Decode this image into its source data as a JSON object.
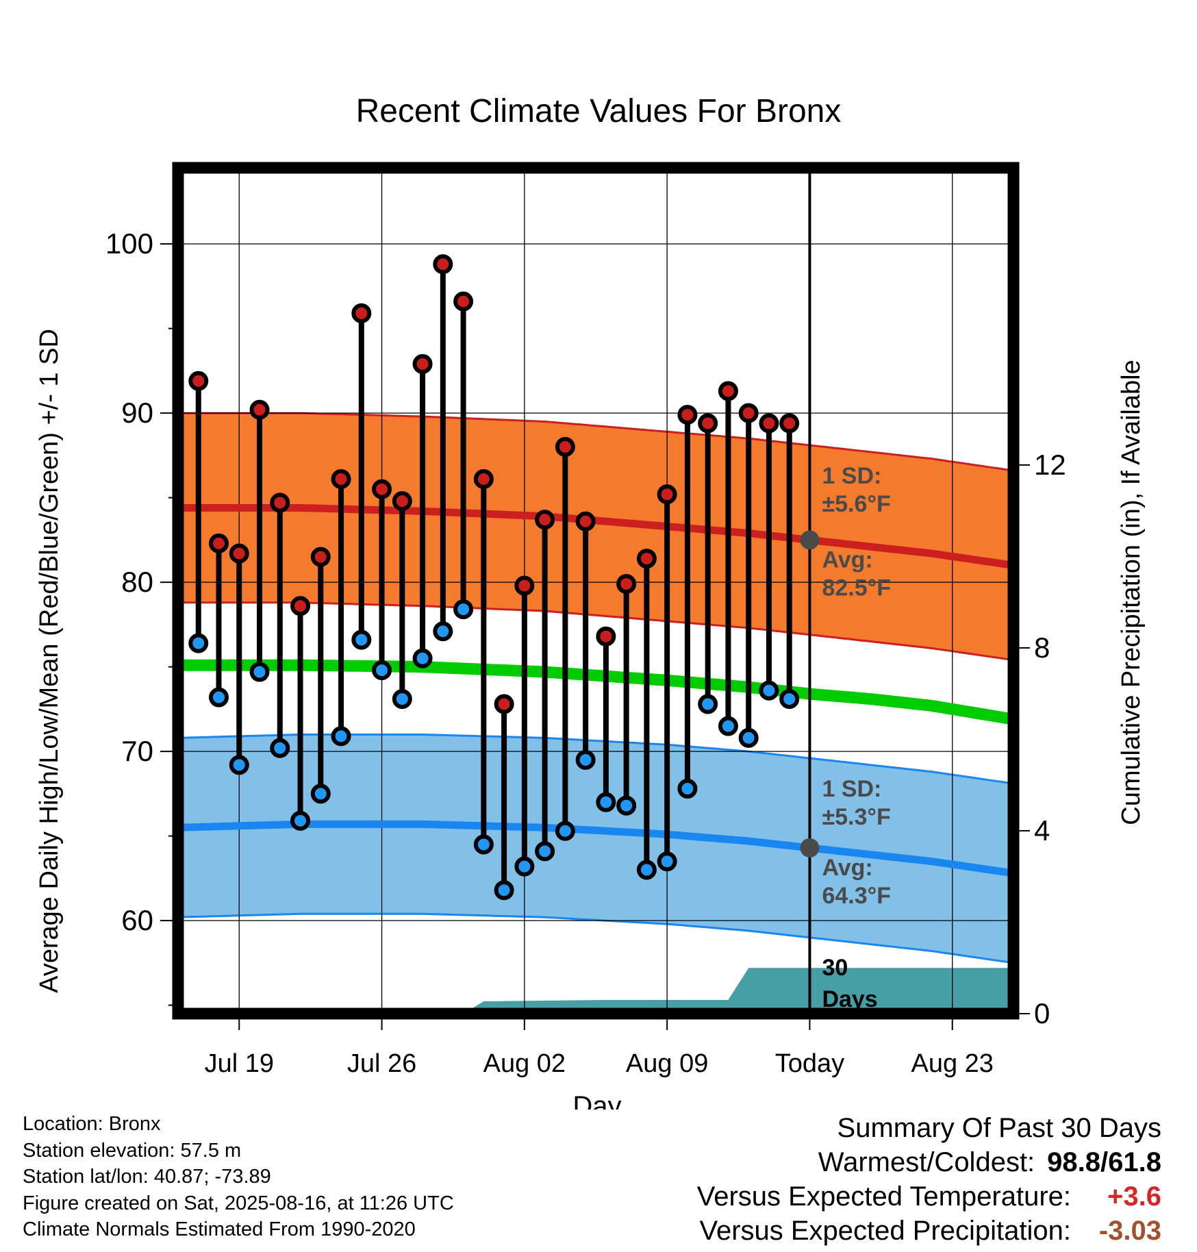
{
  "chart_data": {
    "type": "line",
    "title": "Recent Climate Values For Bronx",
    "xlabel": "Day",
    "ylabel": "Average Daily High/Low/Mean (Red/Blue/Green) +/- 1 SD",
    "y2label": "Cumulative Precipitation (in), If Available",
    "ylim": [
      54.5,
      104.5
    ],
    "y2lim": [
      0,
      18.5
    ],
    "y_ticks": [
      60,
      70,
      80,
      90,
      100
    ],
    "y2_ticks": [
      0,
      4,
      8,
      12
    ],
    "x_ticks": [
      "Jul 19",
      "Jul 26",
      "Aug 02",
      "Aug 09",
      "Today",
      "Aug 23"
    ],
    "x_tick_dates": [
      "2025-07-19",
      "2025-07-26",
      "2025-08-02",
      "2025-08-09",
      "2025-08-16",
      "2025-08-23"
    ],
    "today": "2025-08-16",
    "x_range": [
      "2025-07-16",
      "2025-08-26"
    ],
    "grid": true,
    "colors": {
      "high": "#cc1f1f",
      "high_band": "#f47a2e",
      "low": "#1a86f0",
      "low_band": "#82c0e8",
      "mean": "#00cc00",
      "precip": "#459fa5",
      "high_marker": "#c81e1e",
      "low_marker": "#2196f3",
      "annotation": "#4a4a4a"
    },
    "daily_observations": [
      {
        "date": "2025-07-17",
        "high": 91.9,
        "low": 76.4
      },
      {
        "date": "2025-07-18",
        "high": 82.3,
        "low": 73.2
      },
      {
        "date": "2025-07-19",
        "high": 81.7,
        "low": 69.2
      },
      {
        "date": "2025-07-20",
        "high": 90.2,
        "low": 74.7
      },
      {
        "date": "2025-07-21",
        "high": 84.7,
        "low": 70.2
      },
      {
        "date": "2025-07-22",
        "high": 78.6,
        "low": 65.9
      },
      {
        "date": "2025-07-23",
        "high": 81.5,
        "low": 67.5
      },
      {
        "date": "2025-07-24",
        "high": 86.1,
        "low": 70.9
      },
      {
        "date": "2025-07-25",
        "high": 95.9,
        "low": 76.6
      },
      {
        "date": "2025-07-26",
        "high": 85.5,
        "low": 74.8
      },
      {
        "date": "2025-07-27",
        "high": 84.8,
        "low": 73.1
      },
      {
        "date": "2025-07-28",
        "high": 92.9,
        "low": 75.5
      },
      {
        "date": "2025-07-29",
        "high": 98.8,
        "low": 77.1
      },
      {
        "date": "2025-07-30",
        "high": 96.6,
        "low": 78.4
      },
      {
        "date": "2025-07-31",
        "high": 86.1,
        "low": 64.5
      },
      {
        "date": "2025-08-01",
        "high": 72.8,
        "low": 61.8
      },
      {
        "date": "2025-08-02",
        "high": 79.8,
        "low": 63.2
      },
      {
        "date": "2025-08-03",
        "high": 83.7,
        "low": 64.1
      },
      {
        "date": "2025-08-04",
        "high": 88.0,
        "low": 65.3
      },
      {
        "date": "2025-08-05",
        "high": 83.6,
        "low": 69.5
      },
      {
        "date": "2025-08-06",
        "high": 76.8,
        "low": 67.0
      },
      {
        "date": "2025-08-07",
        "high": 79.9,
        "low": 66.8
      },
      {
        "date": "2025-08-08",
        "high": 81.4,
        "low": 63.0
      },
      {
        "date": "2025-08-09",
        "high": 85.2,
        "low": 63.5
      },
      {
        "date": "2025-08-10",
        "high": 89.9,
        "low": 67.8
      },
      {
        "date": "2025-08-11",
        "high": 89.4,
        "low": 72.8
      },
      {
        "date": "2025-08-12",
        "high": 91.3,
        "low": 71.5
      },
      {
        "date": "2025-08-13",
        "high": 90.0,
        "low": 70.8
      },
      {
        "date": "2025-08-14",
        "high": 89.4,
        "low": 73.6
      },
      {
        "date": "2025-08-15",
        "high": 89.4,
        "low": 73.1
      }
    ],
    "normal_high": {
      "dates": [
        "2025-07-16",
        "2025-07-22",
        "2025-07-28",
        "2025-08-03",
        "2025-08-09",
        "2025-08-13",
        "2025-08-16",
        "2025-08-19",
        "2025-08-22",
        "2025-08-26"
      ],
      "values": [
        84.4,
        84.4,
        84.2,
        83.9,
        83.3,
        82.9,
        82.5,
        82.1,
        81.7,
        81.0
      ]
    },
    "high_sd": 5.6,
    "normal_low": {
      "dates": [
        "2025-07-16",
        "2025-07-22",
        "2025-07-28",
        "2025-08-03",
        "2025-08-09",
        "2025-08-13",
        "2025-08-16",
        "2025-08-19",
        "2025-08-22",
        "2025-08-26"
      ],
      "values": [
        65.5,
        65.7,
        65.7,
        65.5,
        65.1,
        64.7,
        64.3,
        63.9,
        63.5,
        62.8
      ]
    },
    "low_sd": 5.3,
    "normal_mean": {
      "dates": [
        "2025-07-16",
        "2025-07-22",
        "2025-07-28",
        "2025-08-03",
        "2025-08-09",
        "2025-08-13",
        "2025-08-16",
        "2025-08-19",
        "2025-08-22",
        "2025-08-26"
      ],
      "values": [
        75.1,
        75.1,
        75.0,
        74.7,
        74.2,
        73.8,
        73.4,
        73.1,
        72.7,
        71.9
      ]
    },
    "precip_cumulative": {
      "dates": [
        "2025-07-30",
        "2025-07-31",
        "2025-08-06",
        "2025-08-12",
        "2025-08-13",
        "2025-08-26"
      ],
      "values": [
        0.0,
        0.27,
        0.3,
        0.3,
        1.0,
        1.0
      ]
    },
    "annotations": {
      "high_sd_line1": "1 SD:",
      "high_sd_line2": "±5.6°F",
      "high_avg_line1": "Avg:",
      "high_avg_line2": "82.5°F",
      "low_sd_line1": "1 SD:",
      "low_sd_line2": "±5.3°F",
      "low_avg_line1": "Avg:",
      "low_avg_line2": "64.3°F",
      "days_line1": "30",
      "days_line2": "Days"
    }
  },
  "footer": {
    "location": "Location: Bronx",
    "elevation": "Station elevation: 57.5 m",
    "latlon": "Station lat/lon: 40.87; -73.89",
    "created": "Figure created on Sat, 2025-08-16, at 11:26 UTC",
    "normals": "Climate Normals Estimated From 1990-2020"
  },
  "summary": {
    "title": "Summary Of Past 30 Days",
    "warmest_label": "Warmest/Coldest:",
    "warmest_value": "98.8/61.8",
    "temp_label": "Versus Expected Temperature:",
    "temp_value": "+3.6",
    "temp_color": "#d62728",
    "precip_label": "Versus Expected Precipitation:",
    "precip_value": "-3.03",
    "precip_color": "#a0522d"
  }
}
